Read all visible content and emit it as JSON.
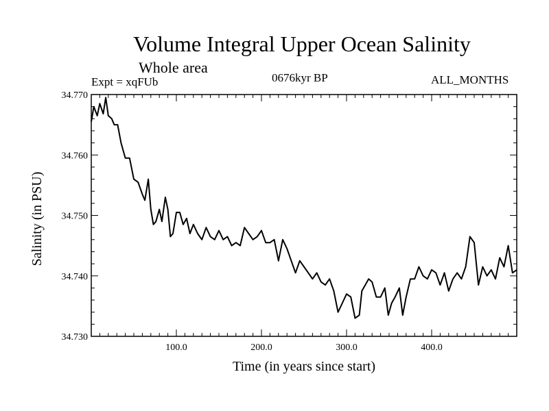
{
  "header": {
    "title": "Volume Integral Upper Ocean Salinity",
    "subtitle": "Whole area",
    "experiment": "Expt = xqFUb",
    "period": "0676kyr BP",
    "months": "ALL_MONTHS"
  },
  "chart_data": {
    "type": "line",
    "title": "Volume Integral Upper Ocean Salinity",
    "subtitle": "Whole area",
    "xlabel": "Time (in years since start)",
    "ylabel": "Salinity (in PSU)",
    "xlim": [
      0,
      500
    ],
    "ylim": [
      34.73,
      34.77
    ],
    "x_ticks": [
      100,
      200,
      300,
      400
    ],
    "x_tick_labels": [
      "100.0",
      "200.0",
      "300.0",
      "400.0"
    ],
    "y_ticks": [
      34.73,
      34.74,
      34.75,
      34.76,
      34.77
    ],
    "y_tick_labels": [
      "34.730",
      "34.740",
      "34.750",
      "34.760",
      "34.770"
    ],
    "grid": false,
    "series": [
      {
        "name": "salinity",
        "x": [
          0,
          3,
          7,
          10,
          14,
          17,
          20,
          24,
          27,
          31,
          35,
          40,
          45,
          50,
          55,
          60,
          63,
          67,
          70,
          73,
          76,
          80,
          83,
          87,
          90,
          93,
          96,
          100,
          104,
          108,
          112,
          116,
          120,
          125,
          130,
          135,
          140,
          145,
          150,
          155,
          160,
          165,
          170,
          175,
          180,
          185,
          190,
          195,
          200,
          205,
          210,
          215,
          220,
          225,
          230,
          235,
          240,
          245,
          250,
          255,
          260,
          265,
          270,
          275,
          280,
          285,
          290,
          295,
          300,
          305,
          310,
          315,
          318,
          322,
          326,
          330,
          335,
          340,
          345,
          349,
          353,
          357,
          362,
          366,
          370,
          375,
          380,
          385,
          390,
          395,
          400,
          405,
          410,
          415,
          420,
          425,
          430,
          435,
          440,
          445,
          450,
          455,
          460,
          465,
          470,
          475,
          480,
          485,
          490,
          495,
          500
        ],
        "values": [
          34.7655,
          34.768,
          34.7665,
          34.7685,
          34.7668,
          34.7695,
          34.7665,
          34.766,
          34.765,
          34.765,
          34.762,
          34.7595,
          34.7595,
          34.756,
          34.7555,
          34.7535,
          34.7525,
          34.756,
          34.751,
          34.7485,
          34.749,
          34.751,
          34.749,
          34.753,
          34.751,
          34.7465,
          34.747,
          34.7505,
          34.7505,
          34.7485,
          34.7495,
          34.747,
          34.7485,
          34.747,
          34.746,
          34.748,
          34.7465,
          34.746,
          34.7475,
          34.746,
          34.7465,
          34.745,
          34.7455,
          34.745,
          34.748,
          34.747,
          34.746,
          34.7465,
          34.7475,
          34.7455,
          34.7455,
          34.746,
          34.7425,
          34.746,
          34.7445,
          34.7425,
          34.7405,
          34.7425,
          34.7415,
          34.7405,
          34.7395,
          34.7405,
          34.739,
          34.7385,
          34.7395,
          34.7375,
          34.734,
          34.7355,
          34.737,
          34.7365,
          34.733,
          34.7335,
          34.7375,
          34.7385,
          34.7395,
          34.739,
          34.7365,
          34.7365,
          34.738,
          34.7335,
          34.7355,
          34.7365,
          34.738,
          34.7335,
          34.7365,
          34.7395,
          34.7395,
          34.7415,
          34.74,
          34.7395,
          34.741,
          34.7405,
          34.7385,
          34.7405,
          34.7375,
          34.7395,
          34.7405,
          34.7395,
          34.7415,
          34.7465,
          34.7455,
          34.7385,
          34.7415,
          34.74,
          34.741,
          34.7395,
          34.743,
          34.7415,
          34.745,
          34.7405,
          34.741
        ]
      }
    ]
  }
}
